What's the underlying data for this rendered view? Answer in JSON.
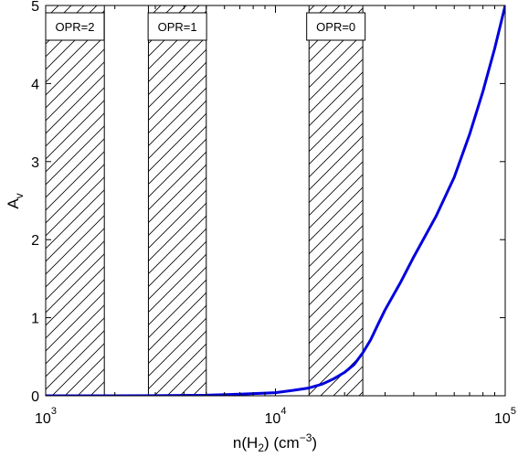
{
  "chart_data": {
    "type": "line",
    "x_scale": "log",
    "xlim": [
      1000,
      100000
    ],
    "ylim": [
      0,
      5
    ],
    "grid": false,
    "xlabel": "n(H₂) (cm⁻³)",
    "ylabel": "A_v",
    "x_ticks": [
      {
        "value": 1000,
        "base": "10",
        "exp": "3"
      },
      {
        "value": 10000,
        "base": "10",
        "exp": "4"
      },
      {
        "value": 100000,
        "base": "10",
        "exp": "5"
      }
    ],
    "y_ticks": [
      "0",
      "1",
      "2",
      "3",
      "4",
      "5"
    ],
    "series": [
      {
        "color": "#0000dd",
        "x": [
          1000,
          2000,
          3000,
          5000,
          7000,
          10000,
          12000,
          14000,
          16000,
          18000,
          20000,
          22000,
          24000,
          26000,
          28000,
          30000,
          35000,
          40000,
          50000,
          60000,
          70000,
          80000,
          90000,
          100000
        ],
        "y": [
          0.0,
          0.0,
          0.002,
          0.007,
          0.02,
          0.04,
          0.07,
          0.1,
          0.15,
          0.22,
          0.3,
          0.4,
          0.55,
          0.72,
          0.92,
          1.1,
          1.45,
          1.78,
          2.3,
          2.8,
          3.35,
          3.9,
          4.45,
          5.0
        ]
      }
    ],
    "bands": [
      {
        "label": "OPR=2",
        "x0": 1000,
        "x1": 1800,
        "label_position": "top-left"
      },
      {
        "label": "OPR=1",
        "x0": 2800,
        "x1": 5000,
        "label_position": "top"
      },
      {
        "label": "OPR=0",
        "x0": 14000,
        "x1": 24000,
        "label_position": "top"
      }
    ]
  }
}
